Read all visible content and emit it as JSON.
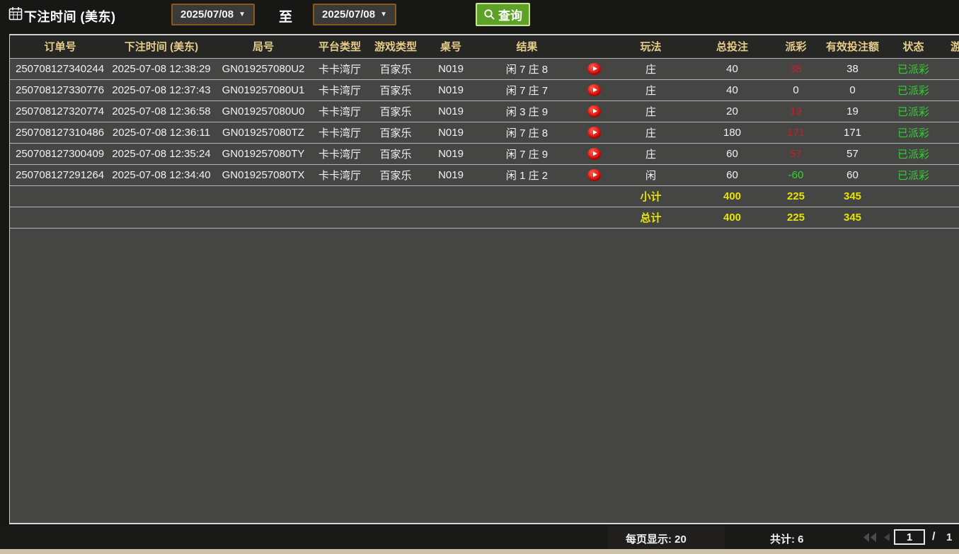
{
  "toolbar": {
    "bet_time_label": "下注时间 (美东)",
    "date_from": "2025/07/08",
    "date_to": "2025/07/08",
    "to_label": "至",
    "search_label": "查询"
  },
  "table": {
    "columns": [
      "订单号",
      "下注时间 (美东)",
      "局号",
      "平台类型",
      "游戏类型",
      "桌号",
      "结果",
      "",
      "玩法",
      "总投注",
      "派彩",
      "有效投注额",
      "状态",
      "游戏"
    ],
    "rows": [
      {
        "order_id": "250708127340244",
        "bet_time": "2025-07-08 12:38:29",
        "round_id": "GN019257080U2",
        "platform": "卡卡湾厅",
        "game_type": "百家乐",
        "table_no": "N019",
        "result": "闲 7 庄 8",
        "play": "庄",
        "total_bet": "40",
        "payout": "38",
        "payout_color": "red",
        "valid_bet": "38",
        "status": "已派彩"
      },
      {
        "order_id": "250708127330776",
        "bet_time": "2025-07-08 12:37:43",
        "round_id": "GN019257080U1",
        "platform": "卡卡湾厅",
        "game_type": "百家乐",
        "table_no": "N019",
        "result": "闲 7 庄 7",
        "play": "庄",
        "total_bet": "40",
        "payout": "0",
        "payout_color": "white",
        "valid_bet": "0",
        "status": "已派彩"
      },
      {
        "order_id": "250708127320774",
        "bet_time": "2025-07-08 12:36:58",
        "round_id": "GN019257080U0",
        "platform": "卡卡湾厅",
        "game_type": "百家乐",
        "table_no": "N019",
        "result": "闲 3 庄 9",
        "play": "庄",
        "total_bet": "20",
        "payout": "19",
        "payout_color": "red",
        "valid_bet": "19",
        "status": "已派彩"
      },
      {
        "order_id": "250708127310486",
        "bet_time": "2025-07-08 12:36:11",
        "round_id": "GN019257080TZ",
        "platform": "卡卡湾厅",
        "game_type": "百家乐",
        "table_no": "N019",
        "result": "闲 7 庄 8",
        "play": "庄",
        "total_bet": "180",
        "payout": "171",
        "payout_color": "red",
        "valid_bet": "171",
        "status": "已派彩"
      },
      {
        "order_id": "250708127300409",
        "bet_time": "2025-07-08 12:35:24",
        "round_id": "GN019257080TY",
        "platform": "卡卡湾厅",
        "game_type": "百家乐",
        "table_no": "N019",
        "result": "闲 7 庄 9",
        "play": "庄",
        "total_bet": "60",
        "payout": "57",
        "payout_color": "red",
        "valid_bet": "57",
        "status": "已派彩"
      },
      {
        "order_id": "250708127291264",
        "bet_time": "2025-07-08 12:34:40",
        "round_id": "GN019257080TX",
        "platform": "卡卡湾厅",
        "game_type": "百家乐",
        "table_no": "N019",
        "result": "闲 1 庄 2",
        "play": "闲",
        "total_bet": "60",
        "payout": "-60",
        "payout_color": "green",
        "valid_bet": "60",
        "status": "已派彩"
      }
    ],
    "subtotal": {
      "label": "小计",
      "total_bet": "400",
      "payout": "225",
      "valid_bet": "345"
    },
    "total": {
      "label": "总计",
      "total_bet": "400",
      "payout": "225",
      "valid_bet": "345"
    }
  },
  "pagination": {
    "per_page_label": "每页显示: 20",
    "total_count_label": "共计: 6",
    "page_value": "1",
    "page_separator": "/",
    "page_count": "1"
  },
  "colors": {
    "accent_yellow": "#e8e400",
    "win_red": "#bf2228",
    "loss_green": "#35d435",
    "status_green": "#2fd12f",
    "header_text": "#e5cd8a",
    "date_border": "#8a571e",
    "button_green": "#5ea127"
  }
}
